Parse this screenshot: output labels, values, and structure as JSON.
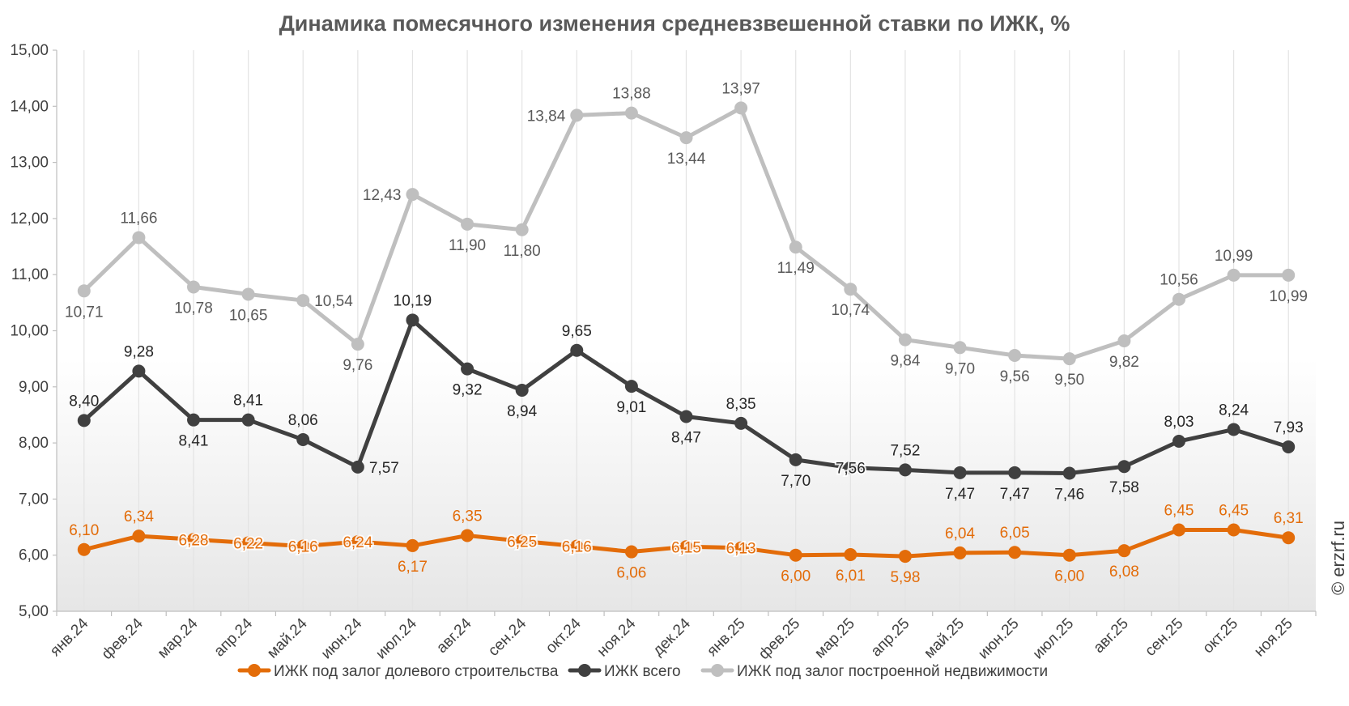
{
  "watermark": "© erzrf.ru",
  "chart_data": {
    "type": "line",
    "title": "Динамика помесячного изменения средневзвешенной ставки по ИЖК, %",
    "xlabel": "",
    "ylabel": "",
    "ylim": [
      5,
      15
    ],
    "yticks": [
      "5,00",
      "6,00",
      "7,00",
      "8,00",
      "9,00",
      "10,00",
      "11,00",
      "12,00",
      "13,00",
      "14,00",
      "15,00"
    ],
    "grid": "vertical",
    "legend_position": "bottom",
    "categories": [
      "янв.24",
      "фев.24",
      "мар.24",
      "апр.24",
      "май.24",
      "июн.24",
      "июл.24",
      "авг.24",
      "сен.24",
      "окт.24",
      "ноя.24",
      "дек.24",
      "янв.25",
      "фев.25",
      "мар.25",
      "апр.25",
      "май.25",
      "июн.25",
      "июл.25",
      "авг.25",
      "сен.25",
      "окт.25",
      "ноя.25"
    ],
    "series": [
      {
        "name": "ИЖК под залог долевого строительства",
        "color": "#e36c09",
        "values": [
          6.1,
          6.34,
          6.28,
          6.22,
          6.16,
          6.24,
          6.17,
          6.35,
          6.25,
          6.16,
          6.06,
          6.15,
          6.13,
          6.0,
          6.01,
          5.98,
          6.04,
          6.05,
          6.0,
          6.08,
          6.45,
          6.45,
          6.31
        ],
        "labels": [
          "6,10",
          "6,34",
          "6,28",
          "6,22",
          "6,16",
          "6,24",
          "6,17",
          "6,35",
          "6,25",
          "6,16",
          "6,06",
          "6,15",
          "6,13",
          "6,00",
          "6,01",
          "5,98",
          "6,04",
          "6,05",
          "6,00",
          "6,08",
          "6,45",
          "6,45",
          "6,31"
        ],
        "label_pos": [
          "above",
          "above",
          "on",
          "on",
          "on",
          "on",
          "below",
          "above",
          "on",
          "on",
          "below",
          "on",
          "on",
          "below",
          "below",
          "below",
          "above",
          "above",
          "below",
          "below",
          "above",
          "above",
          "above"
        ]
      },
      {
        "name": "ИЖК всего",
        "color": "#404040",
        "values": [
          8.4,
          9.28,
          8.41,
          8.41,
          8.06,
          7.57,
          10.19,
          9.32,
          8.94,
          9.65,
          9.01,
          8.47,
          8.35,
          7.7,
          7.56,
          7.52,
          7.47,
          7.47,
          7.46,
          7.58,
          8.03,
          8.24,
          7.93
        ],
        "labels": [
          "8,40",
          "9,28",
          "8,41",
          "8,41",
          "8,06",
          "7,57",
          "10,19",
          "9,32",
          "8,94",
          "9,65",
          "9,01",
          "8,47",
          "8,35",
          "7,70",
          "7,56",
          "7,52",
          "7,47",
          "7,47",
          "7,46",
          "7,58",
          "8,03",
          "8,24",
          "7,93"
        ],
        "label_pos": [
          "above",
          "above",
          "below",
          "above",
          "above",
          "right",
          "above",
          "below",
          "below",
          "above",
          "below",
          "below",
          "above",
          "below",
          "on",
          "above",
          "below",
          "below",
          "below",
          "below",
          "above",
          "above",
          "above"
        ]
      },
      {
        "name": "ИЖК под залог построенной недвижимости",
        "color": "#bfbfbf",
        "values": [
          10.71,
          11.66,
          10.78,
          10.65,
          10.54,
          9.76,
          12.43,
          11.9,
          11.8,
          13.84,
          13.88,
          13.44,
          13.97,
          11.49,
          10.74,
          9.84,
          9.7,
          9.56,
          9.5,
          9.82,
          10.56,
          10.99,
          10.99
        ],
        "labels": [
          "10,71",
          "11,66",
          "10,78",
          "10,65",
          "10,54",
          "9,76",
          "12,43",
          "11,90",
          "11,80",
          "13,84",
          "13,88",
          "13,44",
          "13,97",
          "11,49",
          "10,74",
          "9,84",
          "9,70",
          "9,56",
          "9,50",
          "9,82",
          "10,56",
          "10,99",
          "10,99"
        ],
        "label_pos": [
          "below",
          "above",
          "below",
          "below",
          "right",
          "below",
          "left",
          "below",
          "below",
          "left",
          "above",
          "below",
          "above",
          "below",
          "below",
          "below",
          "below",
          "below",
          "below",
          "below",
          "above",
          "above",
          "below"
        ]
      }
    ]
  }
}
